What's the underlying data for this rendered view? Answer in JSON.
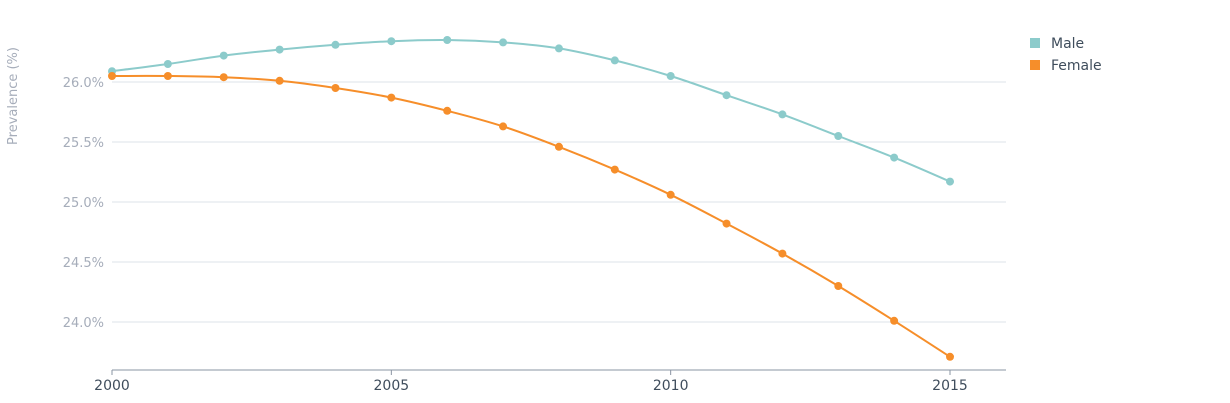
{
  "chart_data": {
    "type": "line",
    "title": "",
    "xlabel": "",
    "ylabel": "Prevalence (%)",
    "x": [
      2000,
      2001,
      2002,
      2003,
      2004,
      2005,
      2006,
      2007,
      2008,
      2009,
      2010,
      2011,
      2012,
      2013,
      2014,
      2015
    ],
    "x_ticks": [
      2000,
      2005,
      2010,
      2015
    ],
    "xlim": [
      2000,
      2016
    ],
    "y_ticks": [
      24.0,
      24.5,
      25.0,
      25.5,
      26.0
    ],
    "y_tick_labels": [
      "24.0%",
      "24.5%",
      "25.0%",
      "25.5%",
      "26.0%"
    ],
    "ylim": [
      23.6,
      26.5
    ],
    "grid": true,
    "legend_position": "top-right",
    "series": [
      {
        "name": "Male",
        "color": "#8ccbcb",
        "values": [
          26.09,
          26.15,
          26.22,
          26.27,
          26.31,
          26.34,
          26.35,
          26.33,
          26.28,
          26.18,
          26.05,
          25.89,
          25.73,
          25.55,
          25.37,
          25.17
        ]
      },
      {
        "name": "Female",
        "color": "#f68e2a",
        "values": [
          26.05,
          26.05,
          26.04,
          26.01,
          25.95,
          25.87,
          25.76,
          25.63,
          25.46,
          25.27,
          25.06,
          24.82,
          24.57,
          24.3,
          24.01,
          23.71
        ]
      }
    ]
  }
}
